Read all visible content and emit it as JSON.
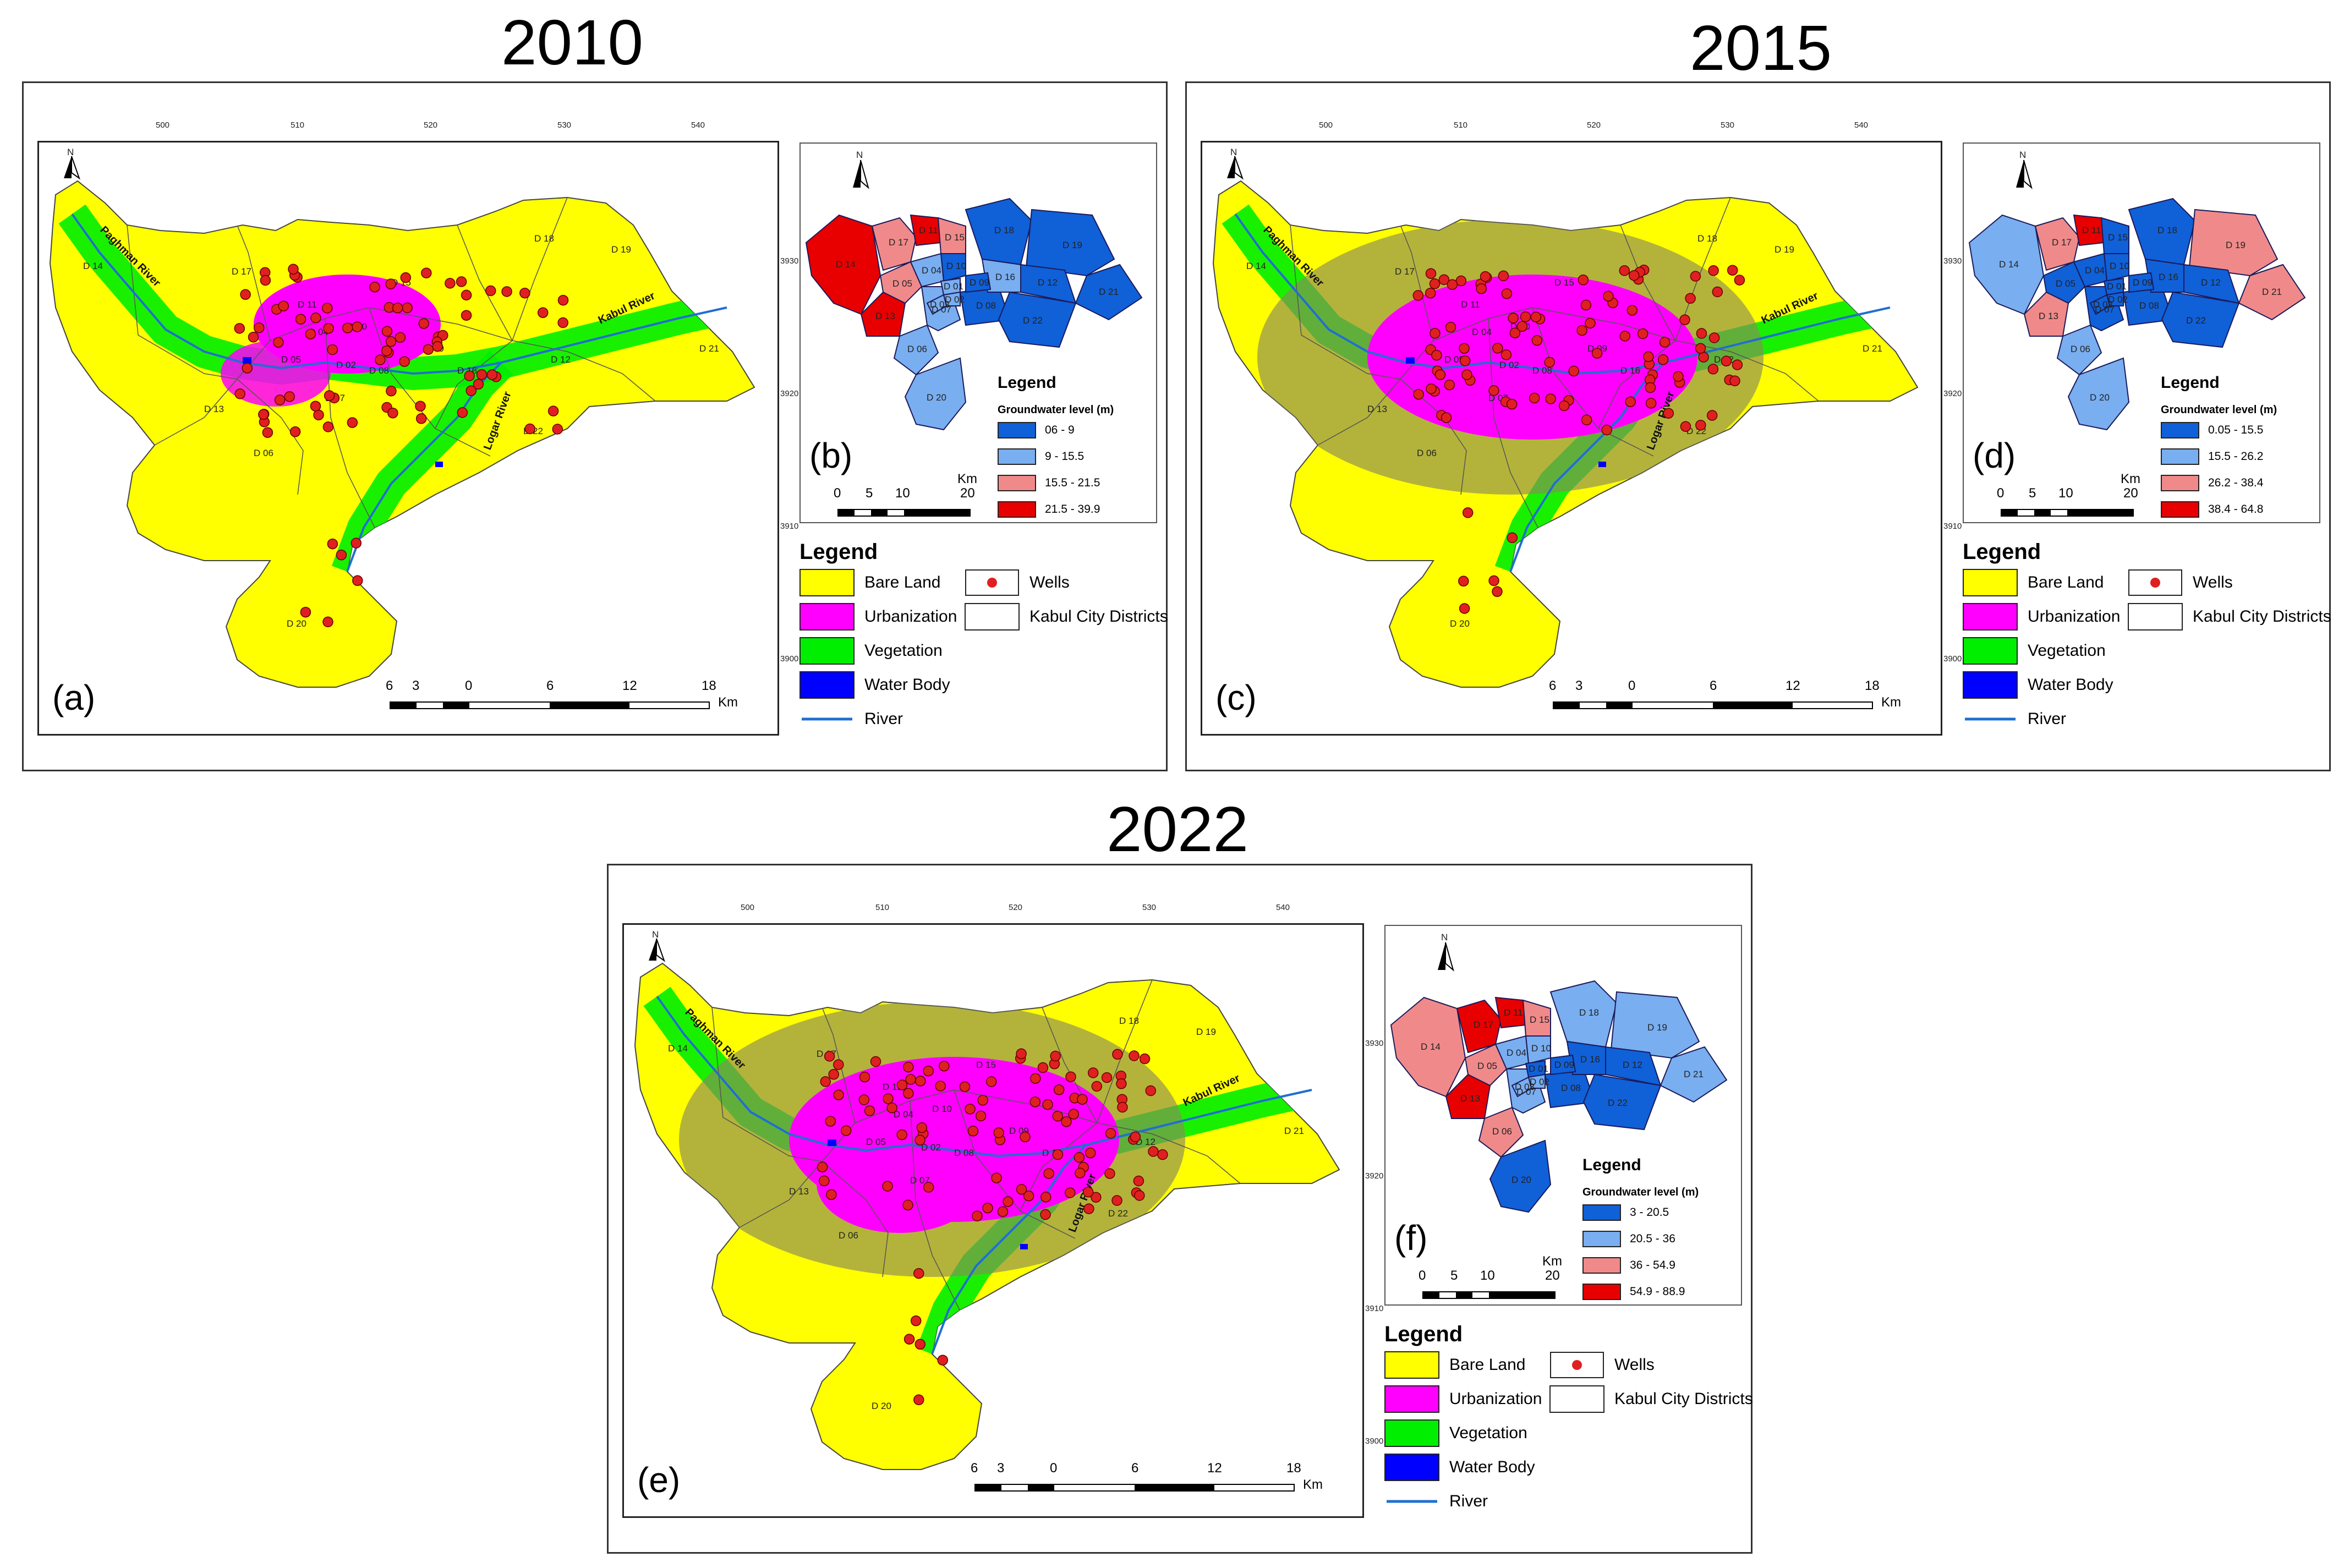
{
  "years": {
    "a": "2010",
    "b": "2015",
    "c": "2022"
  },
  "panel_labels": {
    "a": "(a)",
    "b": "(b)",
    "c": "(c)",
    "d": "(d)",
    "e": "(e)",
    "f": "(f)"
  },
  "north": "N",
  "coord_ticks_x": [
    "500",
    "510",
    "520",
    "530",
    "540"
  ],
  "coord_ticks_y": [
    "3930",
    "3920",
    "3910",
    "3900"
  ],
  "landcover_legend": {
    "title": "Legend",
    "items": [
      {
        "label": "Bare Land",
        "color": "#ffff00"
      },
      {
        "label": "Urbanization",
        "color": "#ff00ff"
      },
      {
        "label": "Vegetation",
        "color": "#00ee00"
      },
      {
        "label": "Water Body",
        "color": "#0000ff"
      }
    ],
    "river": "River",
    "wells": "Wells",
    "districts": "Kabul City Districts",
    "colors": {
      "river": "#1f6fd1",
      "wells": "#e02020",
      "bare": "#ffff00",
      "urban": "#ff00ff",
      "veg": "#00ee00",
      "urban_grey": "#8a8a5a"
    }
  },
  "main_scale": {
    "ticks": [
      "6",
      "3",
      "0",
      "6",
      "12",
      "18"
    ],
    "unit": "Km"
  },
  "inset_scale": {
    "ticks": [
      "0",
      "5",
      "10",
      "20"
    ],
    "unit": "Km"
  },
  "rivers": {
    "paghman": "Paghman River",
    "kabul": "Kabul River",
    "logar": "Logar River"
  },
  "districts": [
    "D 14",
    "D 17",
    "D 15",
    "D 16",
    "D 19",
    "D 21",
    "D 18",
    "D 13",
    "D 06",
    "D 20",
    "D 22",
    "D 12",
    "D 05",
    "D 07",
    "D 08",
    "D 10",
    "D 04",
    "D 11",
    "D 01",
    "D 02",
    "D 03",
    "D 09"
  ],
  "groundwater": {
    "title": "Legend",
    "subtitle": "Groundwater level (m)",
    "colors": [
      "#1060d8",
      "#79aef0",
      "#f08a8a",
      "#e80000"
    ],
    "2010": [
      "06 - 9",
      "9 - 15.5",
      "15.5 - 21.5",
      "21.5 - 39.9"
    ],
    "2015": [
      "0.05 - 15.5",
      "15.5 - 26.2",
      "26.2 - 38.4",
      "38.4 - 64.8"
    ],
    "2022": [
      "3 - 20.5",
      "20.5 - 36",
      "36 - 54.9",
      "54.9 - 88.9"
    ]
  },
  "district_values": {
    "2010": {
      "D 14": 3,
      "D 17": 2,
      "D 11": 3,
      "D 15": 2,
      "D 18": 0,
      "D 19": 0,
      "D 21": 0,
      "D 13": 3,
      "D 05": 2,
      "D 06": 1,
      "D 07": 1,
      "D 08": 0,
      "D 16": 1,
      "D 22": 0,
      "D 20": 1,
      "D 12": 0,
      "D 10": 0,
      "D 04": 1,
      "D 01": 1,
      "D 02": 1,
      "D 03": 1,
      "D 09": 0
    },
    "2015": {
      "D 14": 1,
      "D 17": 2,
      "D 11": 3,
      "D 15": 0,
      "D 18": 0,
      "D 19": 2,
      "D 21": 2,
      "D 13": 2,
      "D 05": 0,
      "D 06": 1,
      "D 07": 0,
      "D 08": 0,
      "D 16": 0,
      "D 22": 0,
      "D 20": 1,
      "D 12": 0,
      "D 10": 0,
      "D 04": 0,
      "D 01": 0,
      "D 02": 0,
      "D 03": 0,
      "D 09": 0
    },
    "2022": {
      "D 14": 2,
      "D 17": 3,
      "D 11": 3,
      "D 15": 2,
      "D 18": 1,
      "D 19": 1,
      "D 21": 1,
      "D 13": 3,
      "D 05": 2,
      "D 06": 2,
      "D 07": 1,
      "D 08": 0,
      "D 16": 0,
      "D 22": 0,
      "D 20": 0,
      "D 12": 0,
      "D 10": 1,
      "D 04": 1,
      "D 01": 0,
      "D 02": 1,
      "D 03": 1,
      "D 09": 0
    }
  }
}
